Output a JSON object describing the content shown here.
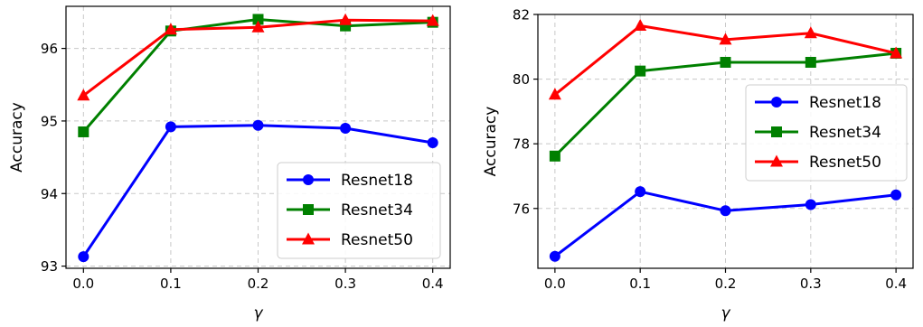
{
  "chart_data": [
    {
      "type": "line",
      "xlabel": "γ",
      "ylabel": "Accuracy",
      "x": [
        0.0,
        0.1,
        0.2,
        0.3,
        0.4
      ],
      "xticks": [
        "0.0",
        "0.1",
        "0.2",
        "0.3",
        "0.4"
      ],
      "xlim": [
        -0.02,
        0.42
      ],
      "yticks": [
        "93",
        "94",
        "95",
        "96"
      ],
      "ylim": [
        92.97,
        96.58
      ],
      "grid": true,
      "legend_position": "lower-right",
      "series": [
        {
          "name": "Resnet18",
          "color": "#0000ff",
          "marker": "circle",
          "values": [
            93.13,
            94.92,
            94.94,
            94.9,
            94.7
          ]
        },
        {
          "name": "Resnet34",
          "color": "#008000",
          "marker": "square",
          "values": [
            94.85,
            96.24,
            96.4,
            96.31,
            96.36
          ]
        },
        {
          "name": "Resnet50",
          "color": "#ff0000",
          "marker": "triangle",
          "values": [
            95.35,
            96.26,
            96.29,
            96.39,
            96.38
          ]
        }
      ]
    },
    {
      "type": "line",
      "xlabel": "γ",
      "ylabel": "Accuracy",
      "x": [
        0.0,
        0.1,
        0.2,
        0.3,
        0.4
      ],
      "xticks": [
        "0.0",
        "0.1",
        "0.2",
        "0.3",
        "0.4"
      ],
      "xlim": [
        -0.02,
        0.42
      ],
      "yticks": [
        "76",
        "78",
        "80",
        "82"
      ],
      "ylim": [
        74.15,
        82.0
      ],
      "grid": true,
      "legend_position": "center-right",
      "series": [
        {
          "name": "Resnet18",
          "color": "#0000ff",
          "marker": "circle",
          "values": [
            74.52,
            76.52,
            75.93,
            76.12,
            76.42
          ]
        },
        {
          "name": "Resnet34",
          "color": "#008000",
          "marker": "square",
          "values": [
            77.62,
            80.25,
            80.52,
            80.52,
            80.8
          ]
        },
        {
          "name": "Resnet50",
          "color": "#ff0000",
          "marker": "triangle",
          "values": [
            79.52,
            81.65,
            81.22,
            81.42,
            80.8
          ]
        }
      ]
    }
  ]
}
